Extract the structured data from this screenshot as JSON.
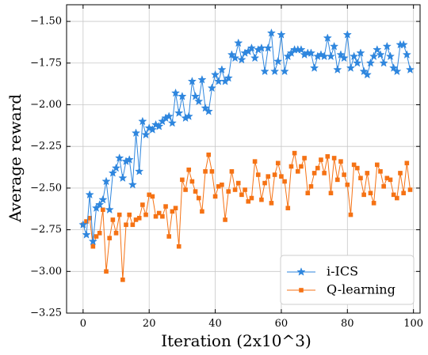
{
  "chart_data": {
    "type": "line",
    "xlabel": "Iteration (2x10^3)",
    "ylabel": "Average reward",
    "xlim": [
      -5,
      102
    ],
    "ylim": [
      -3.25,
      -1.4
    ],
    "xticks": [
      0,
      20,
      40,
      60,
      80,
      100
    ],
    "yticks": [
      -3.25,
      -3.0,
      -2.75,
      -2.5,
      -2.25,
      -2.0,
      -1.75,
      -1.5
    ],
    "xtick_labels": [
      "0",
      "20",
      "40",
      "60",
      "80",
      "100"
    ],
    "ytick_labels": [
      "−3.25",
      "−3.00",
      "−2.75",
      "−2.50",
      "−2.25",
      "−2.00",
      "−1.75",
      "−1.50"
    ],
    "grid": true,
    "legend_position": "lower-right",
    "series": [
      {
        "name": "i-ICS",
        "color": "#2e86de",
        "marker": "star",
        "x": [
          0,
          1,
          2,
          3,
          4,
          5,
          6,
          7,
          8,
          9,
          10,
          11,
          12,
          13,
          14,
          15,
          16,
          17,
          18,
          19,
          20,
          21,
          22,
          23,
          24,
          25,
          26,
          27,
          28,
          29,
          30,
          31,
          32,
          33,
          34,
          35,
          36,
          37,
          38,
          39,
          40,
          41,
          42,
          43,
          44,
          45,
          46,
          47,
          48,
          49,
          50,
          51,
          52,
          53,
          54,
          55,
          56,
          57,
          58,
          59,
          60,
          61,
          62,
          63,
          64,
          65,
          66,
          67,
          68,
          69,
          70,
          71,
          72,
          73,
          74,
          75,
          76,
          77,
          78,
          79,
          80,
          81,
          82,
          83,
          84,
          85,
          86,
          87,
          88,
          89,
          90,
          91,
          92,
          93,
          94,
          95,
          96,
          97,
          98,
          99
        ],
        "y": [
          -2.72,
          -2.78,
          -2.54,
          -2.82,
          -2.62,
          -2.6,
          -2.57,
          -2.46,
          -2.63,
          -2.41,
          -2.38,
          -2.32,
          -2.44,
          -2.34,
          -2.33,
          -2.48,
          -2.17,
          -2.4,
          -2.1,
          -2.18,
          -2.14,
          -2.15,
          -2.12,
          -2.13,
          -2.1,
          -2.08,
          -2.07,
          -2.11,
          -1.93,
          -2.05,
          -1.95,
          -2.08,
          -2.07,
          -1.86,
          -1.95,
          -1.98,
          -1.85,
          -2.02,
          -2.04,
          -1.9,
          -1.82,
          -1.86,
          -1.79,
          -1.86,
          -1.84,
          -1.7,
          -1.72,
          -1.63,
          -1.73,
          -1.69,
          -1.68,
          -1.66,
          -1.72,
          -1.67,
          -1.66,
          -1.8,
          -1.66,
          -1.57,
          -1.8,
          -1.74,
          -1.58,
          -1.8,
          -1.71,
          -1.69,
          -1.67,
          -1.67,
          -1.67,
          -1.7,
          -1.69,
          -1.69,
          -1.78,
          -1.71,
          -1.7,
          -1.71,
          -1.6,
          -1.71,
          -1.65,
          -1.79,
          -1.7,
          -1.72,
          -1.58,
          -1.78,
          -1.71,
          -1.75,
          -1.69,
          -1.8,
          -1.82,
          -1.75,
          -1.71,
          -1.67,
          -1.7,
          -1.75,
          -1.65,
          -1.71,
          -1.78,
          -1.8,
          -1.64,
          -1.64,
          -1.7,
          -1.79
        ]
      },
      {
        "name": "Q-learning",
        "color": "#f57214",
        "marker": "square",
        "x": [
          0,
          1,
          2,
          3,
          4,
          5,
          6,
          7,
          8,
          9,
          10,
          11,
          12,
          13,
          14,
          15,
          16,
          17,
          18,
          19,
          20,
          21,
          22,
          23,
          24,
          25,
          26,
          27,
          28,
          29,
          30,
          31,
          32,
          33,
          34,
          35,
          36,
          37,
          38,
          39,
          40,
          41,
          42,
          43,
          44,
          45,
          46,
          47,
          48,
          49,
          50,
          51,
          52,
          53,
          54,
          55,
          56,
          57,
          58,
          59,
          60,
          61,
          62,
          63,
          64,
          65,
          66,
          67,
          68,
          69,
          70,
          71,
          72,
          73,
          74,
          75,
          76,
          77,
          78,
          79,
          80,
          81,
          82,
          83,
          84,
          85,
          86,
          87,
          88,
          89,
          90,
          91,
          92,
          93,
          94,
          95,
          96,
          97,
          98,
          99
        ],
        "y": [
          -2.72,
          -2.7,
          -2.68,
          -2.85,
          -2.79,
          -2.77,
          -2.63,
          -3.0,
          -2.8,
          -2.69,
          -2.77,
          -2.66,
          -3.05,
          -2.72,
          -2.66,
          -2.72,
          -2.69,
          -2.68,
          -2.6,
          -2.66,
          -2.54,
          -2.55,
          -2.67,
          -2.65,
          -2.67,
          -2.61,
          -2.79,
          -2.64,
          -2.62,
          -2.85,
          -2.45,
          -2.51,
          -2.39,
          -2.46,
          -2.52,
          -2.56,
          -2.64,
          -2.4,
          -2.3,
          -2.4,
          -2.55,
          -2.49,
          -2.48,
          -2.69,
          -2.52,
          -2.4,
          -2.51,
          -2.47,
          -2.54,
          -2.51,
          -2.58,
          -2.56,
          -2.34,
          -2.42,
          -2.57,
          -2.47,
          -2.43,
          -2.59,
          -2.42,
          -2.35,
          -2.43,
          -2.46,
          -2.62,
          -2.37,
          -2.29,
          -2.4,
          -2.37,
          -2.32,
          -2.53,
          -2.49,
          -2.41,
          -2.38,
          -2.33,
          -2.41,
          -2.31,
          -2.53,
          -2.32,
          -2.45,
          -2.34,
          -2.42,
          -2.48,
          -2.66,
          -2.36,
          -2.38,
          -2.44,
          -2.54,
          -2.41,
          -2.53,
          -2.59,
          -2.36,
          -2.4,
          -2.49,
          -2.44,
          -2.45,
          -2.54,
          -2.56,
          -2.41,
          -2.53,
          -2.35,
          -2.51
        ]
      }
    ]
  }
}
